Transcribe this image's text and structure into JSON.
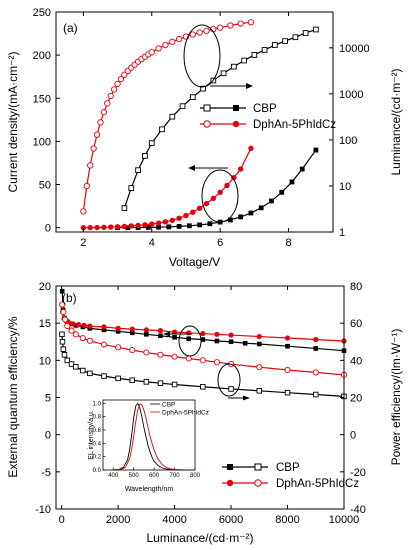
{
  "colors": {
    "black": "#000000",
    "red": "#e8000b"
  },
  "chart_data": [
    {
      "id": "a",
      "panel_label": "(a)",
      "type": "line",
      "xlabel": "Voltage/V",
      "ylabel": "Current density/(mA·cm⁻²)",
      "y2label": "Luminance/(cd·m⁻²)",
      "xlim": [
        1.2,
        9.3
      ],
      "ylim": [
        -5,
        250
      ],
      "y2lim": [
        1,
        60000
      ],
      "y2scale": "log",
      "xticks": [
        "2",
        "4",
        "6",
        "8"
      ],
      "yticks": [
        "0",
        "50",
        "100",
        "150",
        "200",
        "250"
      ],
      "y2ticks": [
        "1",
        "10",
        "100",
        "1000",
        "10000"
      ],
      "legend": {
        "position": "middle-right",
        "entries": [
          "CBP",
          "DphAn-5PhIdCz"
        ]
      },
      "series": [
        {
          "name": "CBP",
          "quantity": "current density",
          "axis": "left",
          "color": "#000000",
          "marker": "square-filled",
          "x": [
            3.0,
            3.3,
            3.6,
            3.9,
            4.2,
            4.5,
            4.8,
            5.1,
            5.4,
            5.7,
            6.0,
            6.3,
            6.6,
            6.9,
            7.2,
            7.5,
            7.8,
            8.1,
            8.4,
            8.8
          ],
          "y": [
            0,
            0.1,
            0.2,
            0.4,
            0.6,
            1.0,
            1.5,
            2.2,
            3.2,
            4.6,
            6.5,
            9.0,
            12.5,
            17,
            23,
            31,
            41,
            53,
            68,
            90
          ]
        },
        {
          "name": "CBP",
          "quantity": "luminance",
          "axis": "right",
          "color": "#000000",
          "marker": "square-open",
          "x": [
            3.2,
            3.4,
            3.6,
            3.8,
            4.0,
            4.3,
            4.6,
            4.9,
            5.2,
            5.5,
            5.8,
            6.1,
            6.4,
            6.7,
            7.0,
            7.3,
            7.6,
            7.9,
            8.2,
            8.5,
            8.8
          ],
          "y": [
            3.3,
            9,
            22,
            45,
            85,
            170,
            320,
            540,
            850,
            1300,
            1950,
            2800,
            3900,
            5300,
            7000,
            9000,
            11500,
            14000,
            17000,
            21000,
            25000
          ]
        },
        {
          "name": "DphAn-5PhIdCz",
          "quantity": "current density",
          "axis": "left",
          "color": "#e8000b",
          "marker": "circle-filled",
          "x": [
            2.0,
            2.2,
            2.4,
            2.6,
            2.8,
            3.0,
            3.2,
            3.4,
            3.6,
            3.8,
            4.0,
            4.2,
            4.4,
            4.6,
            4.8,
            5.0,
            5.2,
            5.4,
            5.6,
            5.8,
            6.0,
            6.2,
            6.4,
            6.6,
            6.9
          ],
          "y": [
            0,
            0.1,
            0.2,
            0.4,
            0.7,
            1.0,
            1.5,
            2.0,
            2.6,
            3.3,
            4.2,
            5.3,
            6.8,
            8.6,
            11,
            14,
            18,
            22.5,
            28,
            34,
            41,
            49,
            58,
            68,
            92
          ]
        },
        {
          "name": "DphAn-5PhIdCz",
          "quantity": "luminance",
          "axis": "right",
          "color": "#e8000b",
          "marker": "circle-open",
          "x": [
            2.0,
            2.1,
            2.2,
            2.3,
            2.4,
            2.5,
            2.6,
            2.7,
            2.8,
            2.9,
            3.0,
            3.1,
            3.2,
            3.3,
            3.4,
            3.5,
            3.6,
            3.7,
            3.8,
            3.9,
            4.0,
            4.2,
            4.4,
            4.6,
            4.8,
            5.0,
            5.2,
            5.4,
            5.6,
            5.8,
            6.0,
            6.3,
            6.6,
            6.9
          ],
          "y": [
            2.8,
            10,
            28,
            65,
            130,
            240,
            400,
            620,
            900,
            1250,
            1650,
            2100,
            2600,
            3150,
            3700,
            4300,
            5000,
            5700,
            6400,
            7200,
            8000,
            9700,
            11500,
            13500,
            15500,
            17500,
            19500,
            21500,
            23500,
            25500,
            27500,
            30500,
            33500,
            36000
          ]
        }
      ]
    },
    {
      "id": "b",
      "panel_label": "(b)",
      "type": "line",
      "xlabel": "Luminance/(cd·m⁻²)",
      "ylabel": "External quantum efficiency/%",
      "y2label": "Power efficiency/(lm·W⁻¹)",
      "xlim": [
        -200,
        10000
      ],
      "ylim": [
        -10,
        20
      ],
      "y2lim": [
        -40,
        80
      ],
      "xticks": [
        "0",
        "2000",
        "4000",
        "6000",
        "8000",
        "10000"
      ],
      "yticks": [
        "-10",
        "-5",
        "0",
        "5",
        "10",
        "15",
        "20"
      ],
      "y2ticks": [
        "-40",
        "-20",
        "0",
        "20",
        "40",
        "60",
        "80"
      ],
      "legend": {
        "position": "bottom-right",
        "entries": [
          "CBP",
          "DphAn-5PhIdCz"
        ]
      },
      "series": [
        {
          "name": "CBP",
          "quantity": "EQE",
          "axis": "left",
          "color": "#000000",
          "marker": "square-filled",
          "x": [
            20,
            50,
            100,
            200,
            350,
            500,
            750,
            1000,
            1500,
            2000,
            2500,
            3000,
            3500,
            4000,
            4500,
            5000,
            5500,
            6000,
            6500,
            7000,
            8000,
            9000,
            10000
          ],
          "y": [
            19.3,
            16.8,
            15.7,
            15.2,
            14.9,
            14.7,
            14.5,
            14.3,
            14.1,
            13.9,
            13.7,
            13.5,
            13.3,
            13.1,
            12.9,
            12.8,
            12.6,
            12.5,
            12.3,
            12.2,
            11.9,
            11.6,
            11.3
          ]
        },
        {
          "name": "CBP",
          "quantity": "power efficiency",
          "axis": "right",
          "color": "#000000",
          "marker": "square-open",
          "x": [
            10,
            30,
            60,
            100,
            200,
            350,
            500,
            750,
            1000,
            1500,
            2000,
            2500,
            3000,
            3500,
            4000,
            5000,
            6000,
            7000,
            8000,
            9000,
            10000
          ],
          "y": [
            54,
            50,
            46,
            43,
            40,
            38,
            36.5,
            34.5,
            33,
            31.5,
            30.3,
            29.3,
            28.4,
            27.7,
            27,
            25.8,
            24.6,
            23.6,
            22.6,
            21.6,
            20.6
          ]
        },
        {
          "name": "DphAn-5PhIdCz",
          "quantity": "EQE",
          "axis": "left",
          "color": "#e8000b",
          "marker": "circle-filled",
          "x": [
            30,
            80,
            150,
            250,
            400,
            600,
            800,
            1000,
            1500,
            2000,
            2500,
            3000,
            3500,
            4000,
            4500,
            5000,
            5500,
            6000,
            7000,
            8000,
            9000,
            10000
          ],
          "y": [
            16.5,
            15.6,
            15.3,
            15.1,
            14.9,
            14.8,
            14.7,
            14.6,
            14.5,
            14.3,
            14.2,
            14.1,
            14.0,
            13.8,
            13.7,
            13.6,
            13.5,
            13.4,
            13.2,
            13.0,
            12.8,
            12.6
          ]
        },
        {
          "name": "DphAn-5PhIdCz",
          "quantity": "power efficiency",
          "axis": "right",
          "color": "#e8000b",
          "marker": "circle-open",
          "x": [
            20,
            60,
            120,
            200,
            350,
            500,
            750,
            1000,
            1500,
            2000,
            2500,
            3000,
            3500,
            4000,
            4500,
            5000,
            5500,
            6000,
            7000,
            8000,
            9000,
            10000
          ],
          "y": [
            70,
            66,
            62,
            58.5,
            56,
            54,
            52,
            50.5,
            48.5,
            47,
            45.5,
            44.2,
            43,
            42,
            41,
            40,
            39,
            38,
            36.3,
            34.8,
            33.5,
            32.2
          ]
        }
      ],
      "inset": {
        "type": "line",
        "xlabel": "Wavelength/nm",
        "ylabel": "EL intensity/a.u.",
        "xlim": [
          350,
          800
        ],
        "ylim": [
          0,
          1.05
        ],
        "xticks": [
          "400",
          "500",
          "600",
          "700",
          "800"
        ],
        "yticks": [
          "0.0",
          "0.2",
          "0.4",
          "0.6",
          "0.8",
          "1.0"
        ],
        "legend": {
          "position": "top-right",
          "entries": [
            "CBP",
            "DphAn-5PhIdCz"
          ]
        },
        "series": [
          {
            "name": "CBP",
            "color": "#000000",
            "x": [
              400,
              430,
              450,
              470,
              480,
              490,
              500,
              510,
              520,
              530,
              540,
              550,
              560,
              570,
              580,
              590,
              600,
              620,
              640,
              660,
              680,
              700,
              750,
              800
            ],
            "y": [
              0,
              0.01,
              0.04,
              0.15,
              0.3,
              0.52,
              0.78,
              0.96,
              1.0,
              0.93,
              0.8,
              0.64,
              0.5,
              0.37,
              0.27,
              0.19,
              0.13,
              0.065,
              0.03,
              0.014,
              0.007,
              0.003,
              0,
              0
            ]
          },
          {
            "name": "DphAn-5PhIdCz",
            "color": "#e8000b",
            "x": [
              400,
              440,
              460,
              480,
              490,
              500,
              510,
              520,
              530,
              540,
              550,
              560,
              570,
              580,
              590,
              600,
              610,
              620,
              640,
              660,
              680,
              700,
              750,
              800
            ],
            "y": [
              0,
              0.01,
              0.04,
              0.17,
              0.31,
              0.5,
              0.72,
              0.9,
              0.99,
              0.98,
              0.9,
              0.78,
              0.64,
              0.51,
              0.4,
              0.3,
              0.22,
              0.16,
              0.08,
              0.038,
              0.018,
              0.008,
              0.001,
              0
            ]
          }
        ]
      }
    }
  ]
}
